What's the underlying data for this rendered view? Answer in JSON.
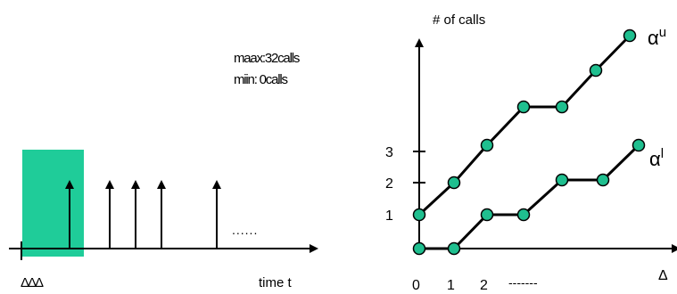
{
  "left_timeline": {
    "overlap_text_line1": "maax:32calls",
    "overlap_text_line2": "miin: 0calls",
    "delta_labels": "ΔΔΔ",
    "x_axis_label": "time t",
    "ellipsis": "......"
  },
  "right_curves": {
    "y_axis_label": "# of calls",
    "x_axis_label": "Δ",
    "y_ticks": [
      "1",
      "2",
      "3"
    ],
    "x_ticks": [
      "0",
      "1",
      "2"
    ],
    "x_ellipsis": "-------",
    "upper_label_base": "α",
    "upper_label_sup": "u",
    "lower_label_base": "α",
    "lower_label_sup": "l"
  },
  "colors": {
    "highlight": "#1fcc99",
    "point_fill": "#1fbf8f",
    "line": "#000000"
  }
}
